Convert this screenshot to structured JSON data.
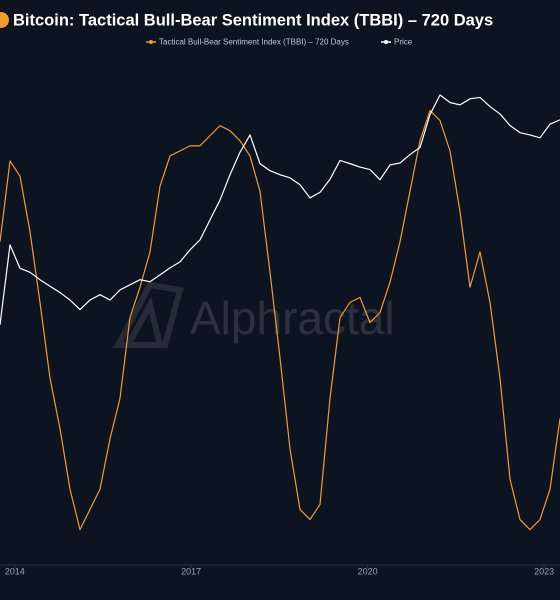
{
  "chart_data": {
    "type": "line",
    "title": "Bitcoin: Tactical Bull-Bear Sentiment Index (TBBI) – 720 Days",
    "watermark": "Alphractal",
    "x": [
      2013.75,
      2013.92,
      2014.09,
      2014.26,
      2014.43,
      2014.6,
      2014.77,
      2014.94,
      2015.11,
      2015.28,
      2015.45,
      2015.62,
      2015.79,
      2015.96,
      2016.13,
      2016.3,
      2016.47,
      2016.64,
      2016.81,
      2016.98,
      2017.15,
      2017.32,
      2017.49,
      2017.66,
      2017.83,
      2018.0,
      2018.17,
      2018.34,
      2018.51,
      2018.68,
      2018.85,
      2019.02,
      2019.19,
      2019.36,
      2019.53,
      2019.7,
      2019.87,
      2020.04,
      2020.21,
      2020.38,
      2020.55,
      2020.72,
      2020.89,
      2021.06,
      2021.23,
      2021.4,
      2021.57,
      2021.74,
      2021.91,
      2022.08,
      2022.25,
      2022.42,
      2022.59,
      2022.76,
      2022.93,
      2023.1,
      2023.27
    ],
    "xlim": [
      2013.75,
      2023.27
    ],
    "xticks": [
      2014,
      2017,
      2020,
      2023
    ],
    "ylim": [
      1,
      150000
    ],
    "log_y": true,
    "y2lim": [
      0,
      100
    ],
    "series": [
      {
        "name": "Tactical Bull-Bear Sentiment Index (TBBI) – 720 Days",
        "color": "#f39a2e",
        "axis": "y2",
        "values": [
          64,
          80,
          77,
          66,
          52,
          37,
          27,
          15,
          7,
          11,
          15,
          25,
          33,
          49,
          55,
          62,
          75,
          81,
          82,
          83,
          83,
          85,
          87,
          86,
          84,
          81,
          74,
          58,
          41,
          23,
          11,
          9,
          12,
          33,
          49,
          52,
          53,
          48,
          50,
          56,
          64,
          74,
          84,
          90,
          88,
          82,
          70,
          55,
          62,
          52,
          37,
          17,
          9,
          7,
          9,
          15,
          29
        ]
      },
      {
        "name": "Price",
        "color": "#ffffff",
        "values": [
          290,
          1910,
          1100,
          1000,
          840,
          720,
          620,
          520,
          415,
          520,
          590,
          520,
          660,
          745,
          840,
          800,
          940,
          1110,
          1280,
          1700,
          2150,
          3450,
          5500,
          10000,
          17000,
          25600,
          13000,
          11000,
          10000,
          9300,
          7900,
          5800,
          6600,
          9000,
          14000,
          13000,
          12000,
          11300,
          8900,
          12600,
          13200,
          16100,
          19000,
          41400,
          65700,
          55000,
          52000,
          60000,
          62000,
          50000,
          42000,
          32000,
          27000,
          25600,
          23900,
          33000,
          36600
        ]
      }
    ]
  }
}
